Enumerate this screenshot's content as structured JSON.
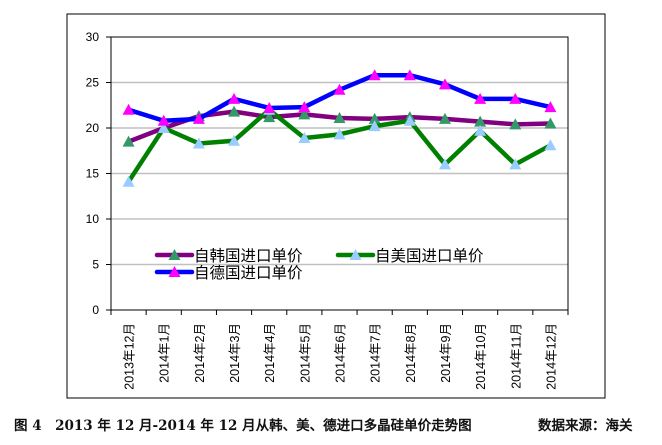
{
  "chart_data": {
    "type": "line",
    "title": "",
    "xlabel": "",
    "ylabel": "",
    "ylim": [
      0,
      30
    ],
    "yticks": [
      "0",
      "5",
      "10",
      "15",
      "20",
      "25",
      "30"
    ],
    "grid": "horizontal",
    "legend_position": "bottom-center inside",
    "categories": [
      "2013年12月",
      "2014年1月",
      "2014年2月",
      "2014年3月",
      "2014年4月",
      "2014年5月",
      "2014年6月",
      "2014年7月",
      "2014年8月",
      "2014年9月",
      "2014年10月",
      "2014年11月",
      "2014年12月"
    ],
    "series": [
      {
        "name": "自韩国进口单价",
        "color": "#800080",
        "marker_color": "#339966",
        "values": [
          18.5,
          20.0,
          21.3,
          21.8,
          21.2,
          21.5,
          21.1,
          21.0,
          21.2,
          21.0,
          20.7,
          20.4,
          20.5
        ]
      },
      {
        "name": "自美国进口单价",
        "color": "#008000",
        "marker_color": "#99ccff",
        "values": [
          14.1,
          20.0,
          18.3,
          18.6,
          22.0,
          18.9,
          19.3,
          20.2,
          20.8,
          16.0,
          19.7,
          16.0,
          18.1
        ]
      },
      {
        "name": "自德国进口单价",
        "color": "#0000ff",
        "marker_color": "#ff00ff",
        "values": [
          22.0,
          20.8,
          21.0,
          23.2,
          22.2,
          22.3,
          24.2,
          25.8,
          25.8,
          24.8,
          23.2,
          23.2,
          22.3
        ]
      }
    ]
  },
  "caption": "图 4　2013 年 12 月-2014 年 12 月从韩、美、德进口多晶硅单价走势图",
  "source": "数据来源：海关"
}
